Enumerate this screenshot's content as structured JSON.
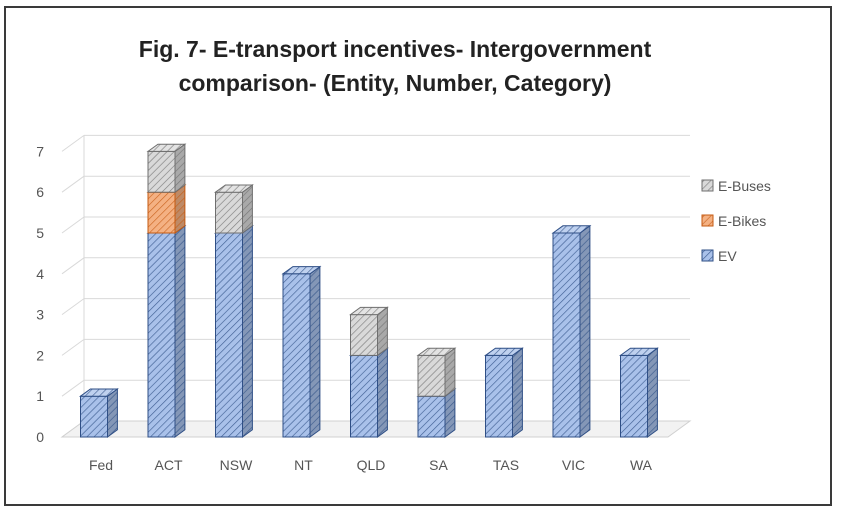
{
  "chart_data": {
    "type": "bar",
    "stacked": true,
    "three_d": true,
    "title_lines": [
      "Fig. 7- E-transport incentives- Intergovernment",
      "comparison- (Entity, Number, Category)"
    ],
    "categories": [
      "Fed",
      "ACT",
      "NSW",
      "NT",
      "QLD",
      "SA",
      "TAS",
      "VIC",
      "WA"
    ],
    "series": [
      {
        "name": "EV",
        "values": [
          1,
          5,
          5,
          4,
          2,
          1,
          2,
          5,
          2
        ],
        "color": "#a9c1ea",
        "edge": "#2f4f86"
      },
      {
        "name": "E-Bikes",
        "values": [
          0,
          1,
          0,
          0,
          0,
          0,
          0,
          0,
          0
        ],
        "color": "#f4b183",
        "edge": "#c55a11"
      },
      {
        "name": "E-Buses",
        "values": [
          0,
          1,
          1,
          0,
          1,
          1,
          0,
          0,
          0
        ],
        "color": "#d9d9d9",
        "edge": "#6f6f6f"
      }
    ],
    "y_ticks": [
      "0",
      "1",
      "2",
      "3",
      "4",
      "5",
      "6",
      "7"
    ],
    "ylim": [
      0,
      7
    ],
    "grid": true,
    "legend": "right",
    "legend_order": [
      "E-Buses",
      "E-Bikes",
      "EV"
    ]
  }
}
